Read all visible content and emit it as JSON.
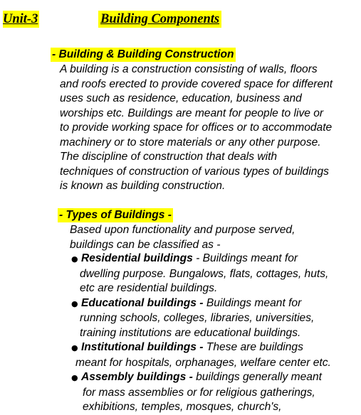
{
  "header": {
    "unit": "Unit-3",
    "title": "Building Components"
  },
  "section1": {
    "heading": "- Building & Building Construction",
    "lines": [
      "A building is a construction consisting of walls, floors",
      "and roofs erected to provide covered space for different",
      "uses such as residence, education, business and",
      "worships etc. Buildings are meant for people to live or",
      "to provide working space for offices or to accommodate",
      "machinery or to store materials or any other purpose.",
      "The discipline of construction that deals with",
      "techniques of construction of various types of buildings",
      "is known as building construction."
    ]
  },
  "section2": {
    "heading": "- Types of Buildings -",
    "intro": [
      "Based upon functionality and purpose served,",
      "buildings can be classified as -"
    ],
    "bullets": [
      {
        "name": "Residential buildings",
        "first": " - Buildings meant for",
        "rest": [
          "dwelling purpose. Bungalows, flats, cottages, huts,",
          "etc are residential buildings."
        ]
      },
      {
        "name": "Educational buildings -",
        "first": "  Buildings meant for",
        "rest": [
          "running schools, colleges, libraries, universities,",
          "training institutions are educational buildings."
        ]
      },
      {
        "name": "Institutional buildings -",
        "first": " These are buildings",
        "rest": [
          "meant for hospitals, orphanages, welfare center etc."
        ]
      },
      {
        "name": "Assembly buildings -",
        "first": " buildings generally meant",
        "rest": [
          "for mass assemblies or for religious gatherings,",
          "exhibitions, temples, mosques, church's,"
        ]
      }
    ]
  }
}
